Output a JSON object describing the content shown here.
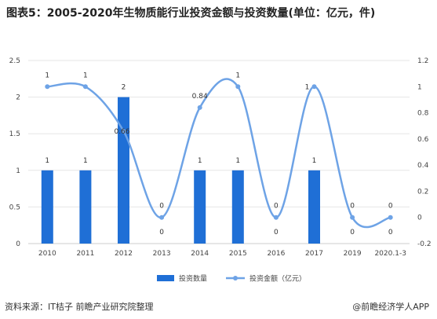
{
  "title": "图表5：2005-2020年生物质能行业投资金额与投资数量(单位：亿元，件)",
  "chart_data": {
    "type": "bar",
    "categories": [
      "2010",
      "2011",
      "2012",
      "2013",
      "2014",
      "2015",
      "2016",
      "2017",
      "2019",
      "2020.1-3"
    ],
    "series": [
      {
        "name": "投资数量",
        "type": "bar",
        "axis": "left",
        "color": "#1f6fd6",
        "values": [
          1,
          1,
          2,
          0,
          1,
          1,
          0,
          1,
          0,
          0
        ]
      },
      {
        "name": "投资金额（亿元）",
        "type": "line",
        "axis": "right",
        "color": "#6ea3e6",
        "values": [
          1,
          1,
          0.66,
          0,
          0.84,
          1,
          0,
          1,
          0,
          0
        ]
      }
    ],
    "left_axis": {
      "ylim": [
        0,
        2.5
      ],
      "ticks": [
        "0",
        "0.5",
        "1",
        "1.5",
        "2",
        "2.5"
      ]
    },
    "right_axis": {
      "ylim": [
        -0.2,
        1.2
      ],
      "ticks": [
        "-0.2",
        "0",
        "0.2",
        "0.4",
        "0.6",
        "0.8",
        "1",
        "1.2"
      ]
    },
    "bar_labels": [
      "1",
      "1",
      "2",
      "0",
      "1",
      "1",
      "0",
      "1",
      "0",
      "0"
    ],
    "line_labels": [
      "1",
      "1",
      "0.66",
      "0",
      "0.84",
      "1",
      "0",
      "1",
      "0",
      "0"
    ],
    "legend_position": "bottom"
  },
  "footer": {
    "source": "资料来源：IT桔子 前瞻产业研究院整理",
    "brand": "@前瞻经济学人APP"
  }
}
